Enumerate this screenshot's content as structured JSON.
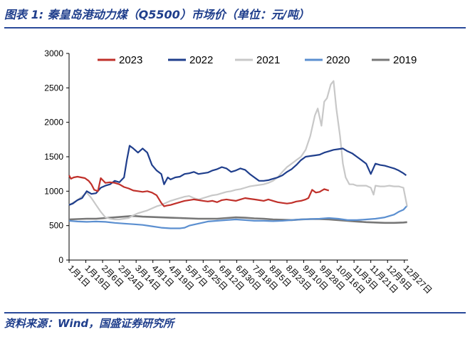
{
  "title": "图表 1:  秦皇岛港动力煤（Q5500）市场价（单位：元/吨）",
  "source": "资料来源：Wind，国盛证券研究所",
  "colors": {
    "2023": "#c0302a",
    "2022": "#1f3e8c",
    "2021": "#c8c8c8",
    "2020": "#5b8fd0",
    "2019": "#777777"
  },
  "chart_data": {
    "type": "line",
    "ylim": [
      0,
      3000
    ],
    "yticks": [
      0,
      500,
      1000,
      1500,
      2000,
      2500,
      3000
    ],
    "ytick_labels": [
      "0",
      "500",
      "1000",
      "1500",
      "2000",
      "2500",
      "3000"
    ],
    "xlim": [
      1,
      365
    ],
    "xticks": [
      1,
      19,
      37,
      55,
      73,
      91,
      109,
      127,
      145,
      163,
      181,
      199,
      217,
      235,
      253,
      271,
      289,
      307,
      325,
      343,
      361
    ],
    "xtick_labels": [
      "1月1日",
      "1月19日",
      "2月6日",
      "2月24日",
      "3月14日",
      "4月1日",
      "4月19日",
      "5月7日",
      "5月25日",
      "6月12日",
      "6月30日",
      "7月18日",
      "8月5日",
      "8月23日",
      "9月10日",
      "9月28日",
      "10月16日",
      "11月3日",
      "11月21日",
      "12月9日",
      "12月27日"
    ],
    "legend_position": "top",
    "series": [
      {
        "name": "2023",
        "x": [
          1,
          3,
          6,
          10,
          14,
          18,
          22,
          25,
          28,
          32,
          35,
          40,
          45,
          50,
          55,
          60,
          65,
          70,
          75,
          80,
          85,
          90,
          95,
          100,
          103,
          106,
          110,
          115,
          120,
          125,
          130,
          135,
          140,
          145,
          150,
          155,
          160,
          165,
          170,
          175,
          180,
          185,
          190,
          195,
          200,
          205,
          210,
          215,
          220,
          225,
          230,
          235,
          240,
          245,
          250,
          255,
          258,
          262,
          266,
          270,
          275,
          280
        ],
        "y": [
          1230,
          1180,
          1200,
          1210,
          1200,
          1190,
          1150,
          1100,
          1020,
          1000,
          1190,
          1120,
          1130,
          1120,
          1100,
          1060,
          1040,
          1010,
          1000,
          990,
          1000,
          980,
          940,
          830,
          780,
          790,
          800,
          820,
          840,
          860,
          870,
          880,
          870,
          860,
          850,
          860,
          840,
          870,
          880,
          870,
          860,
          880,
          900,
          890,
          880,
          870,
          860,
          880,
          860,
          840,
          830,
          820,
          830,
          850,
          860,
          880,
          900,
          1020,
          980,
          990,
          1030,
          1010
        ]
      },
      {
        "name": "2022",
        "x": [
          1,
          5,
          10,
          15,
          20,
          25,
          30,
          35,
          40,
          45,
          50,
          55,
          60,
          63,
          66,
          70,
          75,
          80,
          85,
          90,
          95,
          100,
          103,
          107,
          110,
          115,
          120,
          125,
          130,
          135,
          140,
          145,
          150,
          155,
          160,
          165,
          170,
          175,
          180,
          185,
          190,
          195,
          200,
          205,
          210,
          215,
          220,
          225,
          230,
          235,
          240,
          245,
          250,
          255,
          260,
          265,
          270,
          275,
          280,
          285,
          290,
          295,
          300,
          305,
          310,
          315,
          320,
          325,
          330,
          335,
          340,
          345,
          350,
          355,
          360,
          363
        ],
        "y": [
          800,
          820,
          870,
          900,
          1000,
          960,
          970,
          1050,
          1080,
          1100,
          1150,
          1130,
          1200,
          1450,
          1660,
          1620,
          1560,
          1620,
          1560,
          1380,
          1300,
          1250,
          1100,
          1200,
          1170,
          1200,
          1210,
          1250,
          1260,
          1280,
          1250,
          1260,
          1270,
          1300,
          1320,
          1350,
          1330,
          1280,
          1300,
          1330,
          1310,
          1250,
          1200,
          1150,
          1150,
          1160,
          1180,
          1200,
          1230,
          1280,
          1320,
          1380,
          1450,
          1500,
          1510,
          1520,
          1530,
          1560,
          1580,
          1600,
          1610,
          1620,
          1580,
          1550,
          1500,
          1450,
          1400,
          1250,
          1400,
          1380,
          1370,
          1350,
          1330,
          1300,
          1260,
          1230
        ]
      },
      {
        "name": "2021",
        "x": [
          1,
          10,
          20,
          25,
          30,
          35,
          40,
          45,
          50,
          55,
          60,
          65,
          70,
          75,
          80,
          85,
          90,
          95,
          100,
          105,
          110,
          115,
          120,
          125,
          130,
          135,
          140,
          145,
          150,
          155,
          160,
          165,
          170,
          175,
          180,
          185,
          190,
          195,
          200,
          205,
          210,
          215,
          220,
          225,
          230,
          235,
          240,
          245,
          250,
          255,
          260,
          265,
          268,
          272,
          275,
          278,
          282,
          285,
          288,
          292,
          295,
          298,
          302,
          306,
          310,
          320,
          325,
          328,
          330,
          335,
          340,
          345,
          350,
          355,
          360,
          364
        ],
        "y": [
          800,
          870,
          980,
          900,
          800,
          700,
          620,
          600,
          590,
          590,
          600,
          610,
          650,
          680,
          700,
          720,
          750,
          780,
          800,
          830,
          860,
          880,
          900,
          920,
          930,
          900,
          880,
          900,
          920,
          940,
          950,
          970,
          990,
          1000,
          1020,
          1030,
          1050,
          1070,
          1080,
          1090,
          1100,
          1120,
          1150,
          1200,
          1280,
          1350,
          1400,
          1450,
          1500,
          1600,
          1800,
          2100,
          2200,
          1950,
          2300,
          2350,
          2550,
          2600,
          2200,
          1800,
          1400,
          1200,
          1100,
          1100,
          1080,
          1080,
          1050,
          950,
          1080,
          1070,
          1070,
          1080,
          1070,
          1070,
          1050,
          780
        ]
      },
      {
        "name": "2020",
        "x": [
          1,
          10,
          20,
          30,
          40,
          50,
          60,
          70,
          80,
          90,
          100,
          110,
          120,
          125,
          130,
          140,
          150,
          160,
          170,
          180,
          190,
          200,
          210,
          220,
          230,
          240,
          250,
          260,
          270,
          280,
          290,
          300,
          310,
          320,
          330,
          340,
          350,
          355,
          360,
          364
        ],
        "y": [
          570,
          560,
          555,
          560,
          555,
          540,
          530,
          520,
          510,
          490,
          470,
          460,
          460,
          470,
          500,
          530,
          560,
          570,
          580,
          590,
          580,
          570,
          570,
          565,
          570,
          580,
          590,
          595,
          600,
          610,
          600,
          580,
          580,
          590,
          600,
          620,
          660,
          700,
          730,
          790
        ]
      },
      {
        "name": "2019",
        "x": [
          1,
          10,
          20,
          30,
          40,
          50,
          60,
          70,
          80,
          90,
          100,
          110,
          120,
          130,
          140,
          150,
          160,
          170,
          180,
          190,
          200,
          210,
          220,
          230,
          240,
          250,
          260,
          270,
          280,
          290,
          300,
          310,
          320,
          330,
          340,
          350,
          360,
          364
        ],
        "y": [
          590,
          595,
          600,
          600,
          610,
          620,
          630,
          640,
          630,
          625,
          620,
          615,
          610,
          605,
          600,
          600,
          600,
          610,
          620,
          615,
          605,
          600,
          590,
          585,
          580,
          590,
          595,
          595,
          590,
          580,
          570,
          560,
          550,
          545,
          540,
          540,
          545,
          550
        ]
      }
    ]
  }
}
